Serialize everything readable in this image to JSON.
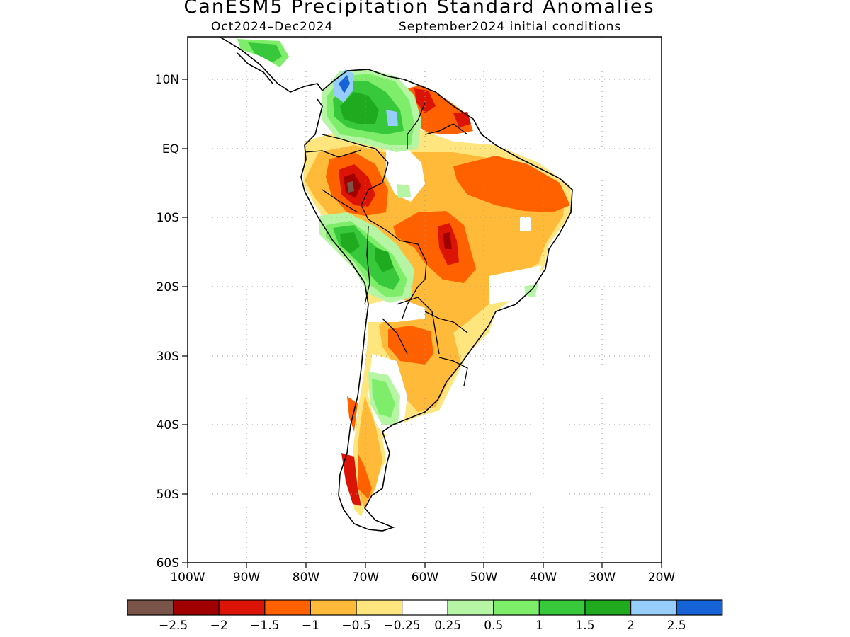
{
  "title": "CanESM5 Precipitation Standard Anomalies",
  "subtitle_left": "Oct2024–Dec2024",
  "subtitle_right": "September2024 initial conditions",
  "map": {
    "lon_range": [
      -100,
      -20
    ],
    "lat_range": [
      -60,
      15
    ],
    "lon_labels": [
      "100W",
      "90W",
      "80W",
      "70W",
      "60W",
      "50W",
      "40W",
      "30W",
      "20W"
    ],
    "lat_labels": [
      "10N",
      "EQ",
      "10S",
      "20S",
      "30S",
      "40S",
      "50S",
      "60S"
    ],
    "gridlines": true
  },
  "legend": {
    "colors": [
      "#7a5448",
      "#a10000",
      "#dc1406",
      "#ff6100",
      "#ffba3a",
      "#fee57e",
      "#ffffff",
      "#b5f5a4",
      "#7eee6a",
      "#37c93b",
      "#1faa1f",
      "#96cdfa",
      "#1663d8"
    ],
    "labels": [
      "−2.5",
      "−2",
      "−1.5",
      "−1",
      "−0.5",
      "−0.25",
      "0.25",
      "0.5",
      "1",
      "1.5",
      "2",
      "2.5"
    ]
  }
}
